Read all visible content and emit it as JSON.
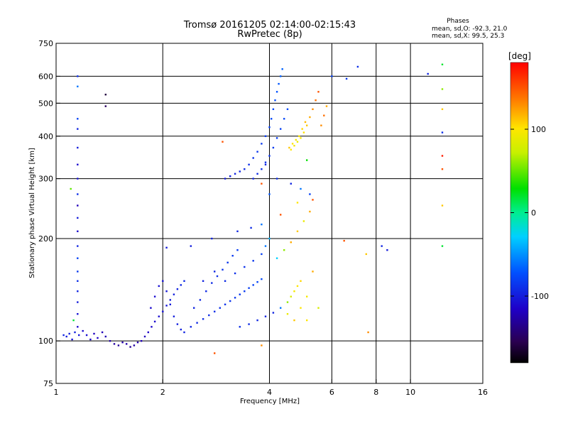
{
  "chart_data": {
    "type": "scatter",
    "title": "Tromsø 20161205 02:14:00-02:15:43",
    "subtitle": "RwPretec (8p)",
    "xlabel": "Frequency [MHz]",
    "ylabel": "Stationary phase Virtual Height [km]",
    "x_scale": "log",
    "y_scale": "log",
    "xlim": [
      1,
      16
    ],
    "ylim": [
      75,
      750
    ],
    "xticks": [
      1,
      2,
      4,
      6,
      8,
      10,
      16
    ],
    "xtick_labels": [
      "1",
      "2",
      "4",
      "6",
      "8",
      "10",
      "16"
    ],
    "x_gridlines": [
      2,
      4,
      6,
      8,
      10
    ],
    "yticks": [
      75,
      100,
      200,
      300,
      400,
      500,
      600,
      750
    ],
    "ytick_labels": [
      "75",
      "100",
      "200",
      "300",
      "400",
      "500",
      "600",
      "750"
    ],
    "y_gridlines": [
      100,
      200,
      300,
      400,
      500,
      600
    ],
    "grid": true,
    "colorbar": {
      "label": "[deg]",
      "range": [
        -180,
        180
      ],
      "ticks": [
        100,
        0,
        -100
      ],
      "tick_labels": [
        "100",
        "0",
        "-100"
      ]
    },
    "stats": {
      "heading": "Phases",
      "o_mode": "mean, sd,O: -92.3, 21.0",
      "x_mode": "mean, sd,X:  99.5, 25.3"
    },
    "series": [
      {
        "values": [
          [
            1.05,
            104,
            -95
          ],
          [
            1.07,
            103,
            -100
          ],
          [
            1.09,
            105,
            -98
          ],
          [
            1.11,
            101,
            -105
          ],
          [
            1.13,
            106,
            -97
          ],
          [
            1.16,
            104,
            -102
          ],
          [
            1.19,
            107,
            -110
          ],
          [
            1.22,
            104,
            -108
          ],
          [
            1.25,
            101,
            -112
          ],
          [
            1.28,
            105,
            -118
          ],
          [
            1.31,
            102,
            -115
          ],
          [
            1.35,
            106,
            -120
          ],
          [
            1.38,
            103,
            -122
          ],
          [
            1.42,
            100,
            -125
          ],
          [
            1.46,
            98,
            -128
          ],
          [
            1.5,
            97,
            -130
          ],
          [
            1.54,
            99,
            -126
          ],
          [
            1.58,
            98,
            -124
          ],
          [
            1.62,
            96,
            -131
          ],
          [
            1.66,
            97,
            -127
          ],
          [
            1.7,
            99,
            -123
          ],
          [
            1.74,
            100,
            -120
          ],
          [
            1.78,
            103,
            -118
          ],
          [
            1.82,
            106,
            -115
          ],
          [
            1.86,
            110,
            -112
          ],
          [
            1.9,
            114,
            -110
          ],
          [
            1.95,
            118,
            -108
          ],
          [
            2.0,
            122,
            -105
          ],
          [
            2.05,
            127,
            -103
          ],
          [
            2.1,
            132,
            -100
          ],
          [
            2.15,
            137,
            -98
          ],
          [
            2.2,
            142,
            -96
          ],
          [
            2.25,
            146,
            -94
          ],
          [
            2.3,
            150,
            -92
          ],
          [
            1.85,
            125,
            -110
          ],
          [
            1.9,
            135,
            -108
          ],
          [
            1.95,
            145,
            -106
          ],
          [
            2.0,
            150,
            -104
          ],
          [
            2.05,
            140,
            -102
          ],
          [
            2.1,
            128,
            -100
          ],
          [
            2.15,
            118,
            -99
          ],
          [
            2.2,
            112,
            -98
          ],
          [
            2.25,
            108,
            -97
          ],
          [
            2.3,
            106,
            -95
          ],
          [
            2.4,
            110,
            -94
          ],
          [
            2.5,
            113,
            -93
          ],
          [
            2.6,
            116,
            -92
          ],
          [
            2.7,
            119,
            -91
          ],
          [
            2.8,
            122,
            -90
          ],
          [
            2.9,
            125,
            -89
          ],
          [
            3.0,
            128,
            -88
          ],
          [
            3.1,
            131,
            -87
          ],
          [
            3.2,
            134,
            -86
          ],
          [
            3.3,
            137,
            -85
          ],
          [
            3.4,
            140,
            -84
          ],
          [
            3.5,
            143,
            -82
          ],
          [
            3.6,
            146,
            -80
          ],
          [
            3.7,
            149,
            -78
          ],
          [
            3.8,
            152,
            -76
          ],
          [
            2.45,
            125,
            -95
          ],
          [
            2.55,
            132,
            -94
          ],
          [
            2.65,
            140,
            -93
          ],
          [
            2.75,
            148,
            -92
          ],
          [
            2.85,
            155,
            -90
          ],
          [
            2.95,
            162,
            -88
          ],
          [
            3.05,
            170,
            -86
          ],
          [
            3.15,
            178,
            -84
          ],
          [
            3.25,
            185,
            -82
          ],
          [
            2.6,
            150,
            -96
          ],
          [
            2.8,
            160,
            -94
          ],
          [
            3.0,
            150,
            -92
          ],
          [
            3.2,
            158,
            -90
          ],
          [
            3.4,
            165,
            -88
          ],
          [
            3.6,
            172,
            -86
          ],
          [
            3.8,
            180,
            -80
          ],
          [
            3.9,
            190,
            -60
          ],
          [
            4.0,
            200,
            -40
          ],
          [
            3.3,
            110,
            -90
          ],
          [
            3.5,
            112,
            -92
          ],
          [
            3.7,
            115,
            -94
          ],
          [
            3.9,
            118,
            -96
          ],
          [
            4.1,
            121,
            -95
          ],
          [
            4.3,
            125,
            -60
          ],
          [
            4.5,
            130,
            60
          ],
          [
            4.6,
            135,
            80
          ],
          [
            4.7,
            140,
            95
          ],
          [
            4.8,
            145,
            100
          ],
          [
            4.9,
            150,
            105
          ],
          [
            4.5,
            120,
            90
          ],
          [
            4.7,
            115,
            110
          ],
          [
            4.9,
            125,
            100
          ],
          [
            5.1,
            135,
            95
          ],
          [
            5.3,
            160,
            120
          ],
          [
            4.2,
            175,
            -30
          ],
          [
            4.4,
            185,
            60
          ],
          [
            4.6,
            195,
            120
          ],
          [
            4.8,
            210,
            110
          ],
          [
            5.0,
            225,
            90
          ],
          [
            5.2,
            240,
            120
          ],
          [
            3.0,
            300,
            -100
          ],
          [
            3.1,
            305,
            -98
          ],
          [
            3.2,
            310,
            -96
          ],
          [
            3.3,
            315,
            -94
          ],
          [
            3.4,
            320,
            -92
          ],
          [
            3.5,
            330,
            -90
          ],
          [
            3.6,
            345,
            -88
          ],
          [
            3.7,
            360,
            -86
          ],
          [
            3.8,
            380,
            -84
          ],
          [
            3.9,
            400,
            -82
          ],
          [
            4.0,
            425,
            -80
          ],
          [
            4.05,
            450,
            -78
          ],
          [
            4.1,
            480,
            -76
          ],
          [
            4.15,
            510,
            -74
          ],
          [
            4.2,
            540,
            -72
          ],
          [
            4.25,
            570,
            -70
          ],
          [
            4.3,
            600,
            -68
          ],
          [
            4.35,
            630,
            -66
          ],
          [
            3.6,
            300,
            -94
          ],
          [
            3.7,
            310,
            -92
          ],
          [
            3.8,
            320,
            -90
          ],
          [
            3.9,
            335,
            -88
          ],
          [
            4.0,
            350,
            -86
          ],
          [
            4.1,
            370,
            -84
          ],
          [
            4.2,
            395,
            -82
          ],
          [
            4.3,
            420,
            -80
          ],
          [
            4.4,
            450,
            -78
          ],
          [
            4.5,
            480,
            -76
          ],
          [
            4.6,
            365,
            100
          ],
          [
            4.7,
            375,
            95
          ],
          [
            4.8,
            385,
            90
          ],
          [
            4.9,
            395,
            98
          ],
          [
            5.0,
            410,
            102
          ],
          [
            5.1,
            430,
            110
          ],
          [
            5.2,
            455,
            120
          ],
          [
            5.3,
            480,
            130
          ],
          [
            5.4,
            510,
            140
          ],
          [
            5.5,
            540,
            150
          ],
          [
            4.55,
            370,
            110
          ],
          [
            4.65,
            380,
            100
          ],
          [
            4.75,
            390,
            95
          ],
          [
            4.85,
            400,
            100
          ],
          [
            4.95,
            420,
            105
          ],
          [
            5.05,
            440,
            115
          ],
          [
            5.6,
            430,
            130
          ],
          [
            5.7,
            460,
            140
          ],
          [
            5.8,
            490,
            120
          ],
          [
            6.0,
            600,
            -80
          ],
          [
            6.6,
            590,
            -85
          ],
          [
            7.1,
            640,
            -90
          ],
          [
            11.2,
            610,
            -95
          ],
          [
            12.3,
            650,
            20
          ],
          [
            12.3,
            550,
            60
          ],
          [
            12.3,
            480,
            110
          ],
          [
            12.3,
            410,
            -90
          ],
          [
            12.3,
            350,
            170
          ],
          [
            12.3,
            320,
            150
          ],
          [
            12.3,
            250,
            110
          ],
          [
            12.3,
            190,
            20
          ],
          [
            8.3,
            190,
            -95
          ],
          [
            8.6,
            185,
            -100
          ],
          [
            7.5,
            180,
            110
          ],
          [
            6.5,
            197,
            150
          ],
          [
            7.6,
            106,
            130
          ],
          [
            1.15,
            600,
            -90
          ],
          [
            1.15,
            560,
            -60
          ],
          [
            1.15,
            450,
            -80
          ],
          [
            1.15,
            420,
            -95
          ],
          [
            1.15,
            370,
            -100
          ],
          [
            1.15,
            330,
            -110
          ],
          [
            1.15,
            300,
            -105
          ],
          [
            1.15,
            270,
            -90
          ],
          [
            1.15,
            250,
            -120
          ],
          [
            1.15,
            230,
            -100
          ],
          [
            1.15,
            210,
            -110
          ],
          [
            1.15,
            190,
            -95
          ],
          [
            1.15,
            175,
            -80
          ],
          [
            1.15,
            160,
            -85
          ],
          [
            1.15,
            150,
            -90
          ],
          [
            1.15,
            140,
            -95
          ],
          [
            1.15,
            130,
            -100
          ],
          [
            1.15,
            120,
            -105
          ],
          [
            1.15,
            110,
            -110
          ],
          [
            1.1,
            280,
            50
          ],
          [
            1.38,
            530,
            -160
          ],
          [
            1.38,
            490,
            -150
          ],
          [
            1.12,
            115,
            20
          ],
          [
            2.05,
            188,
            -100
          ],
          [
            2.4,
            190,
            -98
          ],
          [
            2.75,
            200,
            -96
          ],
          [
            3.25,
            210,
            -94
          ],
          [
            3.55,
            215,
            -92
          ],
          [
            3.8,
            220,
            -60
          ],
          [
            4.3,
            235,
            150
          ],
          [
            4.8,
            255,
            100
          ],
          [
            5.3,
            260,
            150
          ],
          [
            2.8,
            92,
            150
          ],
          [
            3.8,
            97,
            130
          ],
          [
            5.1,
            115,
            100
          ],
          [
            5.5,
            125,
            80
          ],
          [
            4.0,
            270,
            -70
          ],
          [
            3.8,
            290,
            150
          ],
          [
            3.9,
            330,
            -95
          ],
          [
            2.95,
            385,
            150
          ],
          [
            5.1,
            340,
            30
          ],
          [
            4.2,
            300,
            -90
          ],
          [
            4.6,
            290,
            -95
          ],
          [
            4.9,
            280,
            -60
          ],
          [
            5.2,
            270,
            -80
          ]
        ]
      }
    ]
  }
}
